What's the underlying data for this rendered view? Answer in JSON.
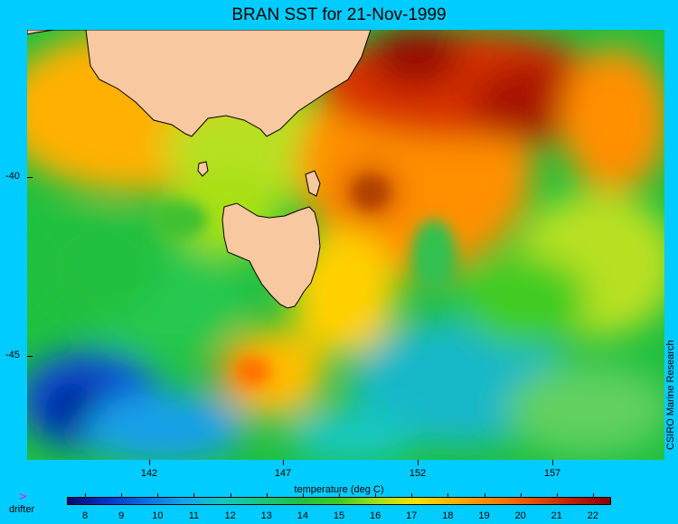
{
  "title": "BRAN SST for 21-Nov-1999",
  "y_axis": {
    "ticks": [
      "-40",
      "-45"
    ],
    "values": [
      -40,
      -45
    ],
    "range": [
      -36,
      -48
    ]
  },
  "x_axis": {
    "ticks": [
      "142",
      "147",
      "152",
      "157"
    ],
    "values": [
      142,
      147,
      152,
      157
    ],
    "range": [
      138,
      162
    ]
  },
  "xlabel": "temperature (deg C)",
  "credit": "CSIRO Marine Research",
  "legend": {
    "drifter_label": "drifter",
    "drifter_color": "#ff00ff"
  },
  "colorbar": {
    "labels": [
      "8",
      "9",
      "10",
      "11",
      "12",
      "13",
      "14",
      "15",
      "16",
      "17",
      "18",
      "19",
      "20",
      "21",
      "22"
    ],
    "range": [
      7.5,
      22.5
    ],
    "colors": [
      "#06086f",
      "#0b30c8",
      "#0a6ee0",
      "#13a4e8",
      "#14c7c0",
      "#18c878",
      "#20c040",
      "#40cc20",
      "#a8e018",
      "#ffe000",
      "#ffb000",
      "#ff8000",
      "#e85000",
      "#c02000",
      "#8a0000"
    ]
  },
  "land_color": "#f8c8a0",
  "ocean_colors": {
    "warm": "#9a1000",
    "mid": "#ffb000",
    "cool": "#20c040",
    "cold": "#0a2acc"
  }
}
